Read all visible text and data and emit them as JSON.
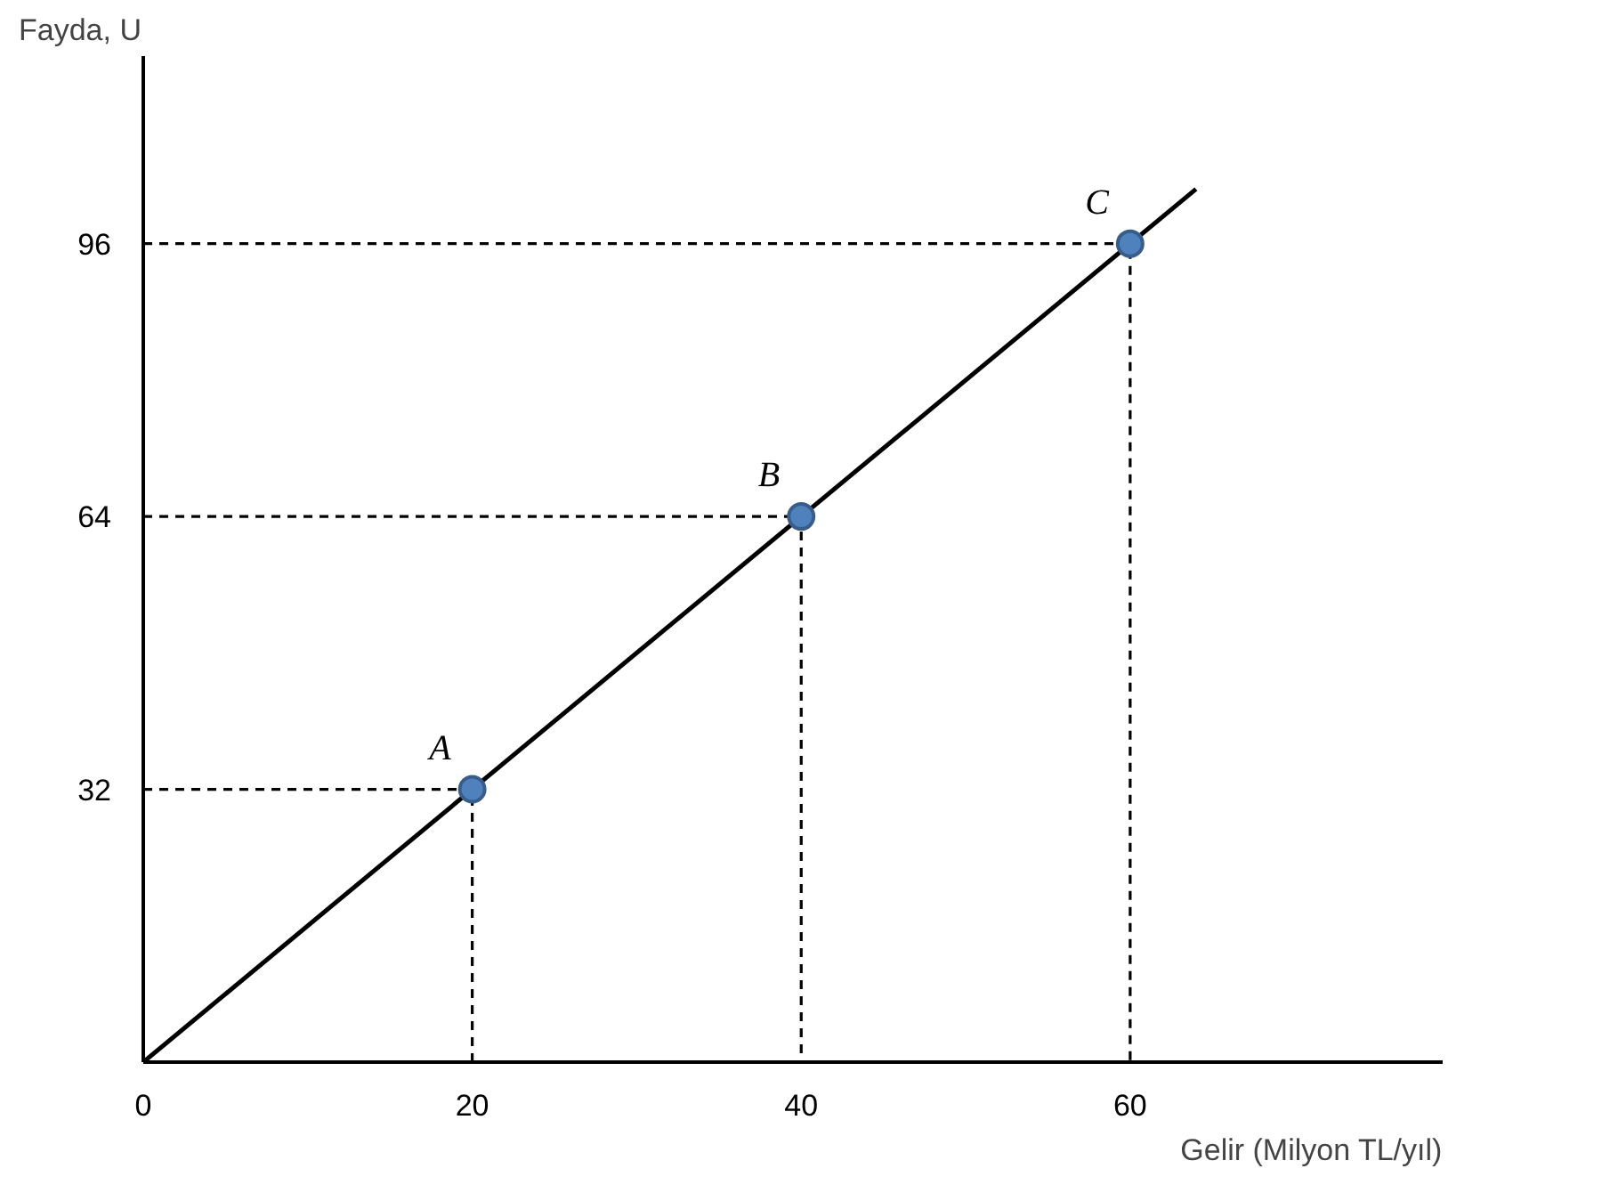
{
  "chart_data": {
    "type": "line",
    "ylabel": "Fayda, U",
    "xlabel": "Gelir (Milyon TL/yıl)",
    "xlim": [
      0,
      79
    ],
    "ylim": [
      0,
      118
    ],
    "xticks": [
      0,
      20,
      40,
      60
    ],
    "yticks": [
      32,
      64,
      96
    ],
    "grid": false,
    "series": [
      {
        "color": "#000000",
        "x": [
          0,
          64
        ],
        "values": [
          0,
          102.4
        ],
        "line_style": "solid",
        "marker": "none"
      },
      {
        "color": "#000000",
        "x": [
          0,
          20,
          20
        ],
        "values": [
          32,
          32,
          0
        ],
        "line_style": "dashed",
        "marker": "none"
      },
      {
        "color": "#000000",
        "x": [
          0,
          40,
          40
        ],
        "values": [
          64,
          64,
          0
        ],
        "line_style": "dashed",
        "marker": "none"
      },
      {
        "color": "#000000",
        "x": [
          0,
          60,
          60
        ],
        "values": [
          96,
          96,
          0
        ],
        "line_style": "dashed",
        "marker": "none"
      },
      {
        "type": "scatter",
        "color": "#4f81bd",
        "x": [
          20,
          40,
          60
        ],
        "values": [
          32,
          64,
          96
        ],
        "marker": "circle"
      }
    ],
    "annotations": [
      {
        "text": "A",
        "x": 20,
        "y": 32
      },
      {
        "text": "B",
        "x": 40,
        "y": 64
      },
      {
        "text": "C",
        "x": 60,
        "y": 96
      }
    ]
  }
}
